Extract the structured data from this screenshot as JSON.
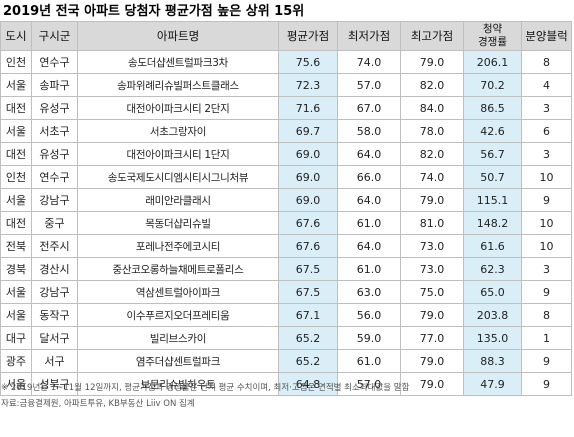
{
  "title": "2019년 전국 아파트 당첨자 평균가점 높은 상위 15위",
  "headers": {
    "city": "도시",
    "district": "구시군",
    "apartment": "아파트명",
    "avg": "평균가점",
    "min": "최저가점",
    "max": "최고가점",
    "competition_line1": "청약",
    "competition_line2": "경쟁률",
    "lots": "분양블럭"
  },
  "highlight_color": "#daeef8",
  "header_color": "#d9d9d9",
  "rows": [
    {
      "city": "인천",
      "district": "연수구",
      "apartment": "송도더샵센트럴파크3차",
      "avg": "75.6",
      "min": "74.0",
      "max": "79.0",
      "competition": "206.1",
      "lots": "8"
    },
    {
      "city": "서울",
      "district": "송파구",
      "apartment": "송파위례리슈빌퍼스트클래스",
      "avg": "72.3",
      "min": "57.0",
      "max": "82.0",
      "competition": "70.2",
      "lots": "4"
    },
    {
      "city": "대전",
      "district": "유성구",
      "apartment": "대전아이파크시티 2단지",
      "avg": "71.6",
      "min": "67.0",
      "max": "84.0",
      "competition": "86.5",
      "lots": "3"
    },
    {
      "city": "서울",
      "district": "서초구",
      "apartment": "서초그랑자이",
      "avg": "69.7",
      "min": "58.0",
      "max": "78.0",
      "competition": "42.6",
      "lots": "6"
    },
    {
      "city": "대전",
      "district": "유성구",
      "apartment": "대전아이파크시티 1단지",
      "avg": "69.0",
      "min": "64.0",
      "max": "82.0",
      "competition": "56.7",
      "lots": "3"
    },
    {
      "city": "인천",
      "district": "연수구",
      "apartment": "송도국제도시디엠시티시그니처뷰",
      "avg": "69.0",
      "min": "66.0",
      "max": "74.0",
      "competition": "50.7",
      "lots": "10"
    },
    {
      "city": "서울",
      "district": "강남구",
      "apartment": "래미안라클래시",
      "avg": "69.0",
      "min": "64.0",
      "max": "79.0",
      "competition": "115.1",
      "lots": "9"
    },
    {
      "city": "대전",
      "district": "중구",
      "apartment": "목동더샵리슈빌",
      "avg": "67.6",
      "min": "61.0",
      "max": "81.0",
      "competition": "148.2",
      "lots": "10"
    },
    {
      "city": "전북",
      "district": "전주시",
      "apartment": "포레나전주에코시티",
      "avg": "67.6",
      "min": "64.0",
      "max": "73.0",
      "competition": "61.6",
      "lots": "10"
    },
    {
      "city": "경북",
      "district": "경산시",
      "apartment": "중산코오롱하늘채메트로폴리스",
      "avg": "67.5",
      "min": "61.0",
      "max": "73.0",
      "competition": "62.3",
      "lots": "3"
    },
    {
      "city": "서울",
      "district": "강남구",
      "apartment": "역삼센트럴아이파크",
      "avg": "67.5",
      "min": "63.0",
      "max": "75.0",
      "competition": "65.0",
      "lots": "9"
    },
    {
      "city": "서울",
      "district": "동작구",
      "apartment": "이수푸르지오더프레티움",
      "avg": "67.1",
      "min": "56.0",
      "max": "79.0",
      "competition": "203.8",
      "lots": "8"
    },
    {
      "city": "대구",
      "district": "달서구",
      "apartment": "빌리브스카이",
      "avg": "65.2",
      "min": "59.0",
      "max": "77.0",
      "competition": "135.0",
      "lots": "1"
    },
    {
      "city": "광주",
      "district": "서구",
      "apartment": "염주더샵센트럴파크",
      "avg": "65.2",
      "min": "61.0",
      "max": "79.0",
      "competition": "88.3",
      "lots": "9"
    },
    {
      "city": "서울",
      "district": "성북구",
      "apartment": "보문리슈빌하우트",
      "avg": "64.8",
      "min": "57.0",
      "max": "79.0",
      "competition": "47.9",
      "lots": "9"
    }
  ],
  "footnote": "※ 2019년은 1~11월 12일까지, 평균가점과 경쟁률은 단지 평균 수치이며, 최저·고점은 면적별 최소최대값을 말함",
  "source": "자료:금융결제원, 아파트투유, KB부동산 Liiv ON 집계"
}
